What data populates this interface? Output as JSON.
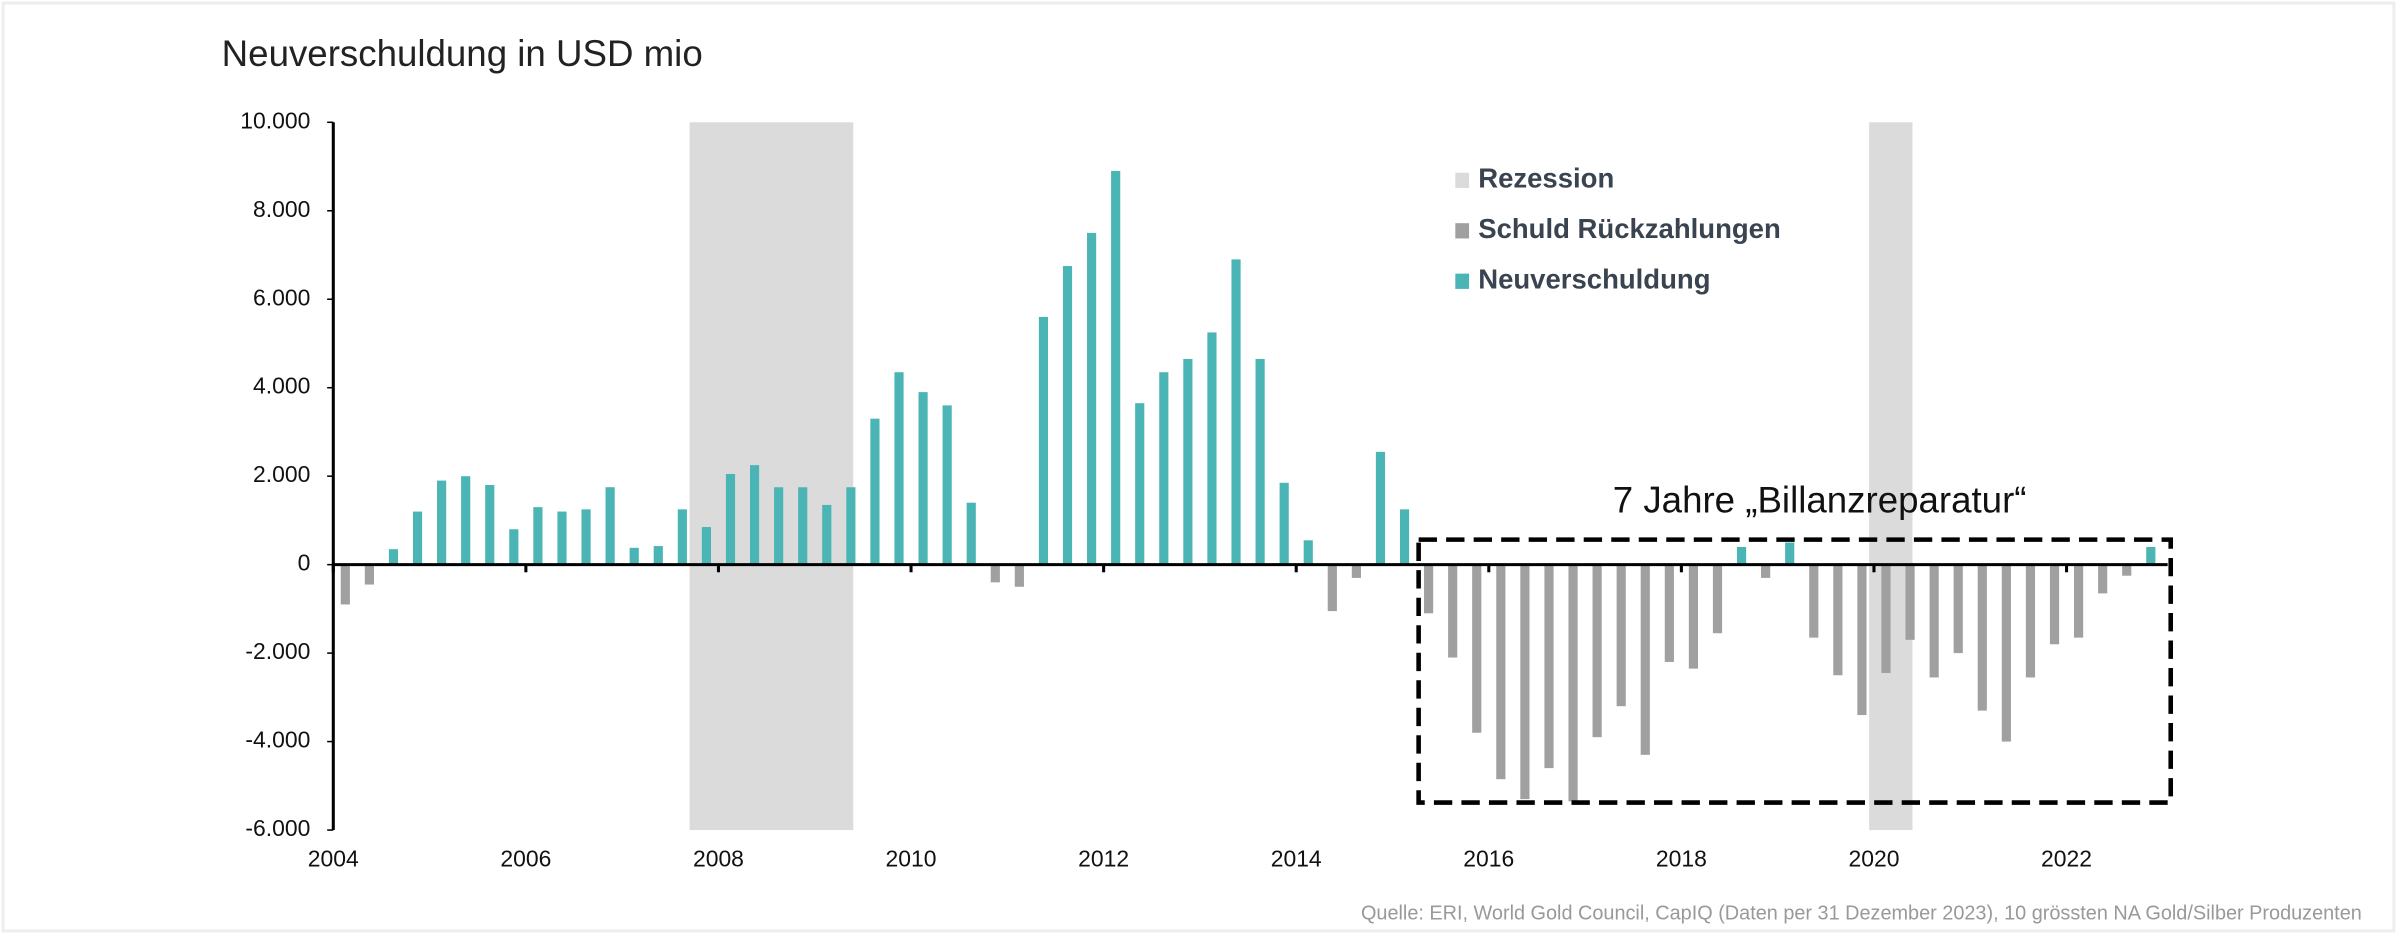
{
  "chart_data": {
    "type": "bar",
    "title": "Neuverschuldung in USD mio",
    "source": "Quelle: ERI, World Gold Council, CapIQ (Daten per 31 Dezember 2023), 10 grössten NA Gold/Silber Produzenten",
    "annotation": "7 Jahre „Billanzreparatur“",
    "recessions": {
      "name": "Rezession",
      "color": "#dcdbdc",
      "spans": [
        [
          2007.7,
          2009.4
        ],
        [
          2019.95,
          2020.4
        ]
      ]
    },
    "x": [
      2004.125,
      2004.375,
      2004.625,
      2004.875,
      2005.125,
      2005.375,
      2005.625,
      2005.875,
      2006.125,
      2006.375,
      2006.625,
      2006.875,
      2007.125,
      2007.375,
      2007.625,
      2007.875,
      2008.125,
      2008.375,
      2008.625,
      2008.875,
      2009.125,
      2009.375,
      2009.625,
      2009.875,
      2010.125,
      2010.375,
      2010.625,
      2010.875,
      2011.125,
      2011.375,
      2011.625,
      2011.875,
      2012.125,
      2012.375,
      2012.625,
      2012.875,
      2013.125,
      2013.375,
      2013.625,
      2013.875,
      2014.125,
      2014.375,
      2014.625,
      2014.875,
      2015.125,
      2015.375,
      2015.625,
      2015.875,
      2016.125,
      2016.375,
      2016.625,
      2016.875,
      2017.125,
      2017.375,
      2017.625,
      2017.875,
      2018.125,
      2018.375,
      2018.625,
      2018.875,
      2019.125,
      2019.375,
      2019.625,
      2019.875,
      2020.125,
      2020.375,
      2020.625,
      2020.875,
      2021.125,
      2021.375,
      2021.625,
      2021.875,
      2022.125,
      2022.375,
      2022.625,
      2022.875
    ],
    "series": [
      {
        "name": "Schuld Rückzahlungen",
        "color": "#a0a0a0",
        "values": [
          -900,
          -450,
          null,
          null,
          null,
          null,
          null,
          null,
          null,
          null,
          null,
          null,
          null,
          null,
          null,
          null,
          null,
          null,
          null,
          null,
          null,
          null,
          null,
          null,
          null,
          null,
          null,
          -400,
          -500,
          null,
          null,
          null,
          null,
          null,
          null,
          null,
          null,
          null,
          null,
          null,
          null,
          -1050,
          -300,
          null,
          null,
          -1100,
          -2100,
          -3800,
          -4850,
          -5300,
          -4600,
          -5350,
          -3900,
          -3200,
          -4300,
          -2200,
          -2350,
          -1550,
          null,
          -300,
          null,
          -1650,
          -2500,
          -3400,
          -2450,
          -1700,
          -2550,
          -2000,
          -3300,
          -4000,
          -2550,
          -1800,
          -1650,
          -650,
          -250,
          null
        ]
      },
      {
        "name": "Neuverschuldung",
        "color": "#4bb5b5",
        "values": [
          null,
          null,
          350,
          1200,
          1900,
          2000,
          1800,
          800,
          1300,
          1200,
          1250,
          1750,
          380,
          420,
          1250,
          850,
          2050,
          2250,
          1750,
          1750,
          1350,
          1750,
          3300,
          4350,
          3900,
          3600,
          1400,
          null,
          null,
          5600,
          6750,
          7500,
          8900,
          3650,
          4350,
          4650,
          5250,
          6900,
          4650,
          1850,
          550,
          null,
          null,
          2550,
          1250,
          null,
          null,
          null,
          null,
          null,
          null,
          null,
          null,
          null,
          null,
          null,
          null,
          null,
          400,
          null,
          500,
          null,
          null,
          null,
          null,
          null,
          null,
          null,
          null,
          null,
          null,
          null,
          null,
          null,
          null,
          400
        ]
      }
    ],
    "xlim": [
      2004,
      2023.05
    ],
    "xticks": [
      2004,
      2006,
      2008,
      2010,
      2012,
      2014,
      2016,
      2018,
      2020,
      2022
    ],
    "ylim": [
      -6000,
      10000
    ],
    "yticks": [
      {
        "value": -6000,
        "label": "-6.000"
      },
      {
        "value": -4000,
        "label": "-4.000"
      },
      {
        "value": -2000,
        "label": "-2.000"
      },
      0,
      {
        "value": 2000,
        "label": "2.000"
      },
      {
        "value": 4000,
        "label": "4.000"
      },
      {
        "value": 6000,
        "label": "6.000"
      },
      {
        "value": 8000,
        "label": "8.000"
      },
      {
        "value": 10000,
        "label": "10.000"
      }
    ],
    "grid": false,
    "legend": "top-right"
  }
}
